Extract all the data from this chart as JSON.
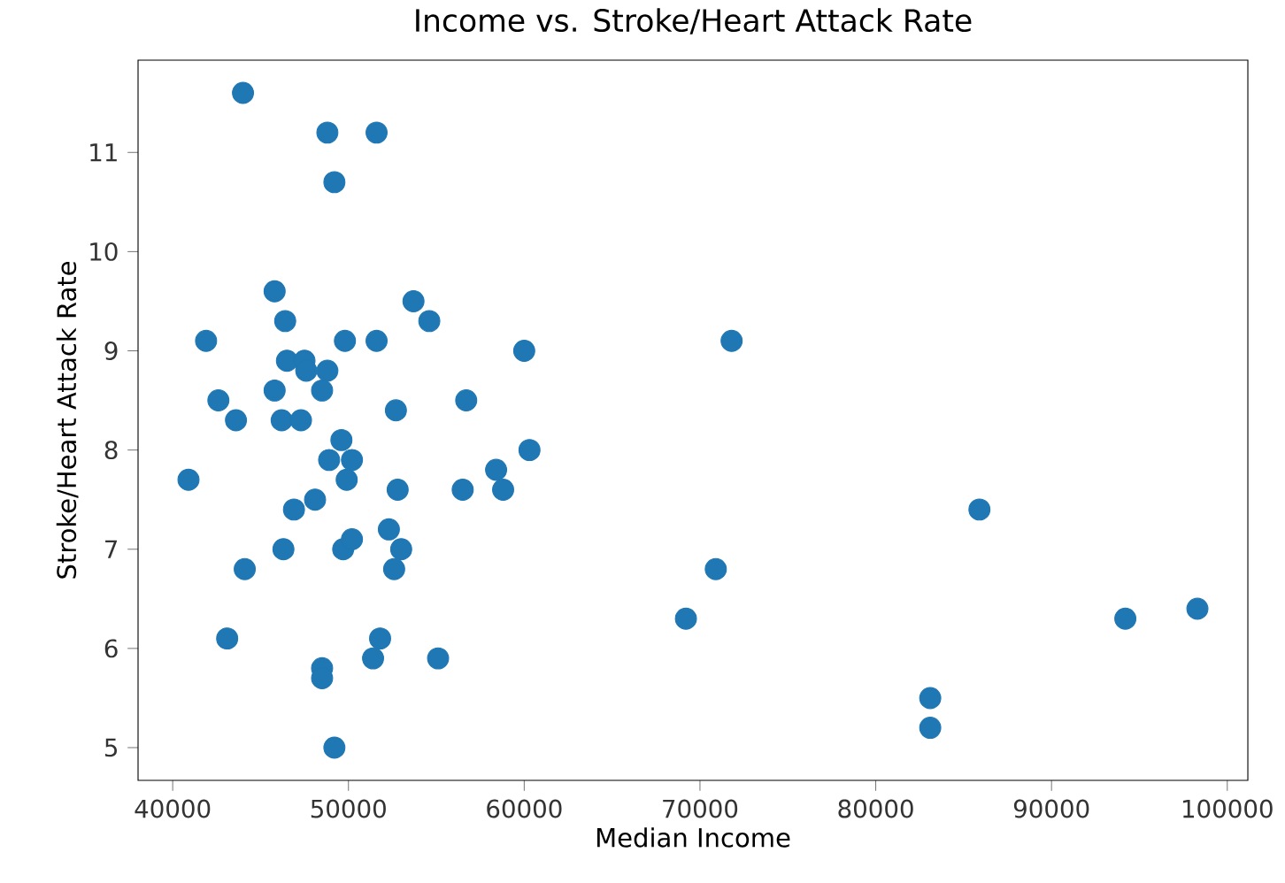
{
  "chart_data": {
    "type": "scatter",
    "title": "Income vs. Stroke/Heart Attack Rate",
    "xlabel": "Median Income",
    "ylabel": "Stroke/Heart Attack Rate",
    "xlim": [
      38030,
      101170
    ],
    "ylim": [
      4.67,
      11.93
    ],
    "xticks": [
      40000,
      50000,
      60000,
      70000,
      80000,
      90000,
      100000
    ],
    "yticks": [
      5,
      6,
      7,
      8,
      9,
      10,
      11
    ],
    "marker": "circle",
    "grid": false,
    "series": [
      {
        "color": "#1f77b4",
        "x": [
          44000,
          48800,
          51600,
          49200,
          45800,
          46400,
          41900,
          49800,
          51600,
          53700,
          54600,
          60000,
          71800,
          46500,
          47500,
          47600,
          48800,
          48500,
          42600,
          43600,
          45800,
          46200,
          47300,
          52700,
          56700,
          49600,
          60300,
          40900,
          48900,
          50200,
          49900,
          48100,
          46900,
          46300,
          44100,
          43100,
          49700,
          50200,
          52300,
          53000,
          52600,
          52800,
          56500,
          58400,
          58800,
          51800,
          51400,
          55100,
          48500,
          48500,
          49200,
          85900,
          70900,
          69200,
          83100,
          83100,
          94200,
          98300
        ],
        "values": [
          11.6,
          11.2,
          11.2,
          10.7,
          9.6,
          9.3,
          9.1,
          9.1,
          9.1,
          9.5,
          9.3,
          9.0,
          9.1,
          8.9,
          8.9,
          8.8,
          8.8,
          8.6,
          8.5,
          8.3,
          8.6,
          8.3,
          8.3,
          8.4,
          8.5,
          8.1,
          8.0,
          7.7,
          7.9,
          7.9,
          7.7,
          7.5,
          7.4,
          7.0,
          6.8,
          6.1,
          7.0,
          7.1,
          7.2,
          7.0,
          6.8,
          7.6,
          7.6,
          7.8,
          7.6,
          6.1,
          5.9,
          5.9,
          5.8,
          5.7,
          5.0,
          7.4,
          6.8,
          6.3,
          5.5,
          5.2,
          6.3,
          6.4
        ]
      }
    ]
  }
}
